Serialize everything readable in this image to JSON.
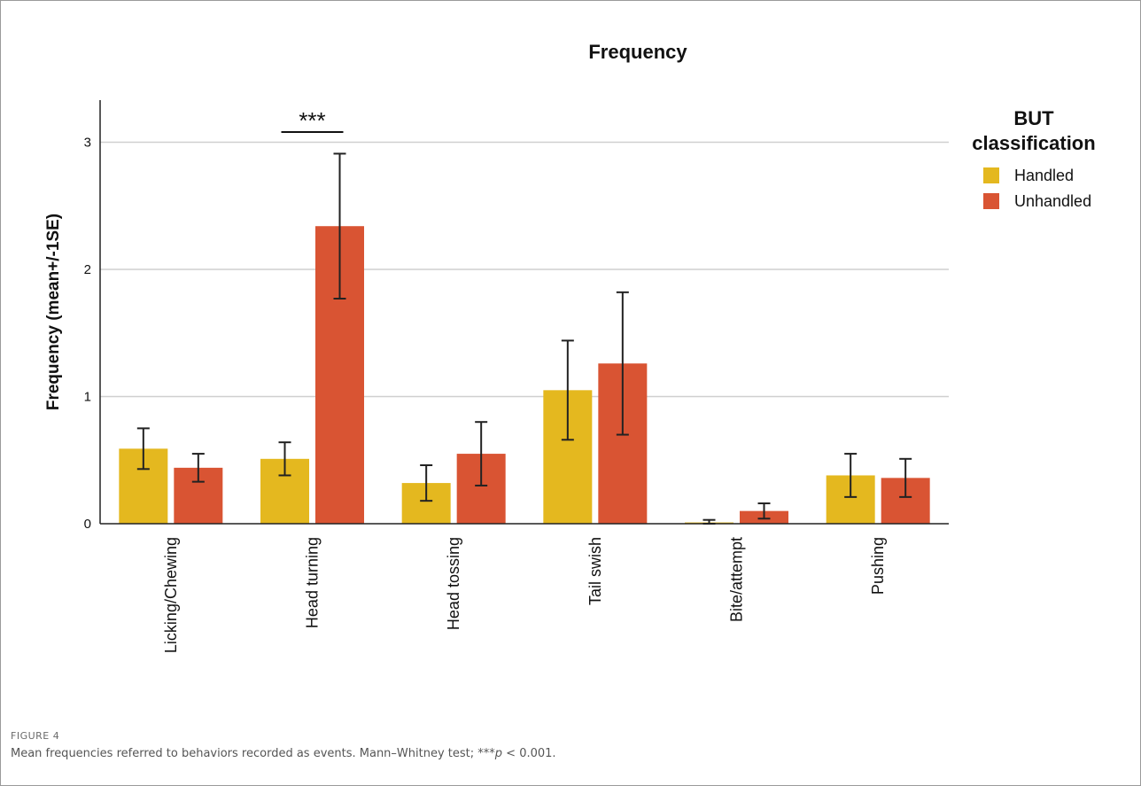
{
  "figure": {
    "label": "FIGURE 4",
    "caption_before": "Mean frequencies referred to behaviors recorded as events. Mann–Whitney test; ***",
    "caption_p": "p",
    "caption_after": " < 0.001."
  },
  "colors": {
    "handled": "#e4b81f",
    "unhandled": "#d95433",
    "grid": "#cfcfcf",
    "axis": "#222222"
  },
  "chart_data": {
    "type": "bar",
    "title": "Frequency",
    "ylabel": "Frequency (mean+/-1SE)",
    "xlabel": "",
    "ylim": [
      0,
      3.3
    ],
    "yticks": [
      0,
      1,
      2,
      3
    ],
    "grid": true,
    "legend": {
      "title_line1": "BUT",
      "title_line2": "classification",
      "placement": "right"
    },
    "categories": [
      "Licking/Chewing",
      "Head turning",
      "Head tossing",
      "Tail swish",
      "Bite/attempt",
      "Pushing"
    ],
    "series": [
      {
        "name": "Handled",
        "values": [
          0.59,
          0.51,
          0.32,
          1.05,
          0.01,
          0.38
        ],
        "err_low": [
          0.43,
          0.38,
          0.18,
          0.66,
          0.0,
          0.21
        ],
        "err_high": [
          0.75,
          0.64,
          0.46,
          1.44,
          0.03,
          0.55
        ]
      },
      {
        "name": "Unhandled",
        "values": [
          0.44,
          2.34,
          0.55,
          1.26,
          0.1,
          0.36
        ],
        "err_low": [
          0.33,
          1.77,
          0.3,
          0.7,
          0.04,
          0.21
        ],
        "err_high": [
          0.55,
          2.91,
          0.8,
          1.82,
          0.16,
          0.51
        ]
      }
    ],
    "annotations": [
      {
        "text": "***",
        "category": "Head turning"
      }
    ]
  }
}
